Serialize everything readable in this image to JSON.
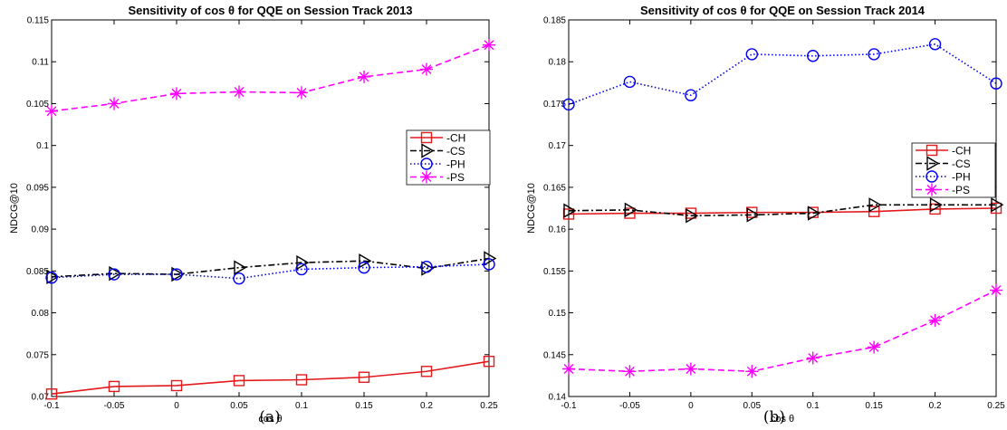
{
  "chart_data": [
    {
      "type": "line",
      "title": "Sensitivity of cos θ for QQE on Session Track 2013",
      "caption": "(a)",
      "xlabel": "cos θ",
      "ylabel": "NDCG@10",
      "x": [
        -0.1,
        -0.05,
        0,
        0.05,
        0.1,
        0.15,
        0.2,
        0.25
      ],
      "x_tick_labels": [
        "-0.1",
        "-0.05",
        "0",
        "0.05",
        "0.1",
        "0.15",
        "0.2",
        "0.25"
      ],
      "xlim": [
        -0.1,
        0.25
      ],
      "ylim": [
        0.07,
        0.115
      ],
      "y_ticks": [
        0.07,
        0.075,
        0.08,
        0.085,
        0.09,
        0.095,
        0.1,
        0.105,
        0.11,
        0.115
      ],
      "y_tick_labels": [
        "0.07",
        "0.075",
        "0.08",
        "0.085",
        "0.09",
        "0.095",
        "0.1",
        "0.105",
        "0.11",
        "0.115"
      ],
      "grid": false,
      "legend_position": "right",
      "series": [
        {
          "name": "-CH",
          "color": "#e31a1c",
          "marker": "square",
          "dash": "solid",
          "values": [
            0.0703,
            0.0712,
            0.0713,
            0.0719,
            0.072,
            0.0723,
            0.073,
            0.0742
          ]
        },
        {
          "name": "-CS",
          "color": "#000000",
          "marker": "triangle-right",
          "dash": "dashdot",
          "values": [
            0.0843,
            0.0847,
            0.0846,
            0.0854,
            0.086,
            0.0862,
            0.0853,
            0.0865
          ]
        },
        {
          "name": "-PH",
          "color": "#0000ee",
          "marker": "circle",
          "dash": "dotted",
          "values": [
            0.0842,
            0.0846,
            0.0846,
            0.0841,
            0.0852,
            0.0854,
            0.0855,
            0.0858
          ]
        },
        {
          "name": "-PS",
          "color": "#ff00ff",
          "marker": "asterisk",
          "dash": "dashed",
          "values": [
            0.1041,
            0.105,
            0.1062,
            0.1064,
            0.1063,
            0.1082,
            0.1091,
            0.112
          ]
        }
      ]
    },
    {
      "type": "line",
      "title": "Sensitivity of cos θ for QQE on Session Track 2014",
      "caption": "(b)",
      "xlabel": "cos θ",
      "ylabel": "NDCG@10",
      "x": [
        -0.1,
        -0.05,
        0,
        0.05,
        0.1,
        0.15,
        0.2,
        0.25
      ],
      "x_tick_labels": [
        "-0.1",
        "-0.05",
        "0",
        "0.05",
        "0.1",
        "0.15",
        "0.2",
        "0.25"
      ],
      "xlim": [
        -0.1,
        0.25
      ],
      "ylim": [
        0.14,
        0.185
      ],
      "y_ticks": [
        0.14,
        0.145,
        0.15,
        0.155,
        0.16,
        0.165,
        0.17,
        0.175,
        0.18,
        0.185
      ],
      "y_tick_labels": [
        "0.14",
        "0.145",
        "0.15",
        "0.155",
        "0.16",
        "0.165",
        "0.17",
        "0.175",
        "0.18",
        "0.185"
      ],
      "grid": false,
      "legend_position": "right",
      "series": [
        {
          "name": "-CH",
          "color": "#e31a1c",
          "marker": "square",
          "dash": "solid",
          "values": [
            0.1618,
            0.1619,
            0.1619,
            0.162,
            0.162,
            0.1621,
            0.1624,
            0.1625
          ]
        },
        {
          "name": "-CS",
          "color": "#000000",
          "marker": "triangle-right",
          "dash": "dashdot",
          "values": [
            0.1622,
            0.1623,
            0.1616,
            0.1617,
            0.1619,
            0.1629,
            0.1629,
            0.1629
          ]
        },
        {
          "name": "-PH",
          "color": "#0000ee",
          "marker": "circle",
          "dash": "dotted",
          "values": [
            0.1749,
            0.1776,
            0.176,
            0.1809,
            0.1807,
            0.1809,
            0.1821,
            0.1774
          ]
        },
        {
          "name": "-PS",
          "color": "#ff00ff",
          "marker": "asterisk",
          "dash": "dashed",
          "values": [
            0.1433,
            0.143,
            0.1433,
            0.143,
            0.1446,
            0.1459,
            0.1491,
            0.1527
          ]
        }
      ]
    }
  ]
}
